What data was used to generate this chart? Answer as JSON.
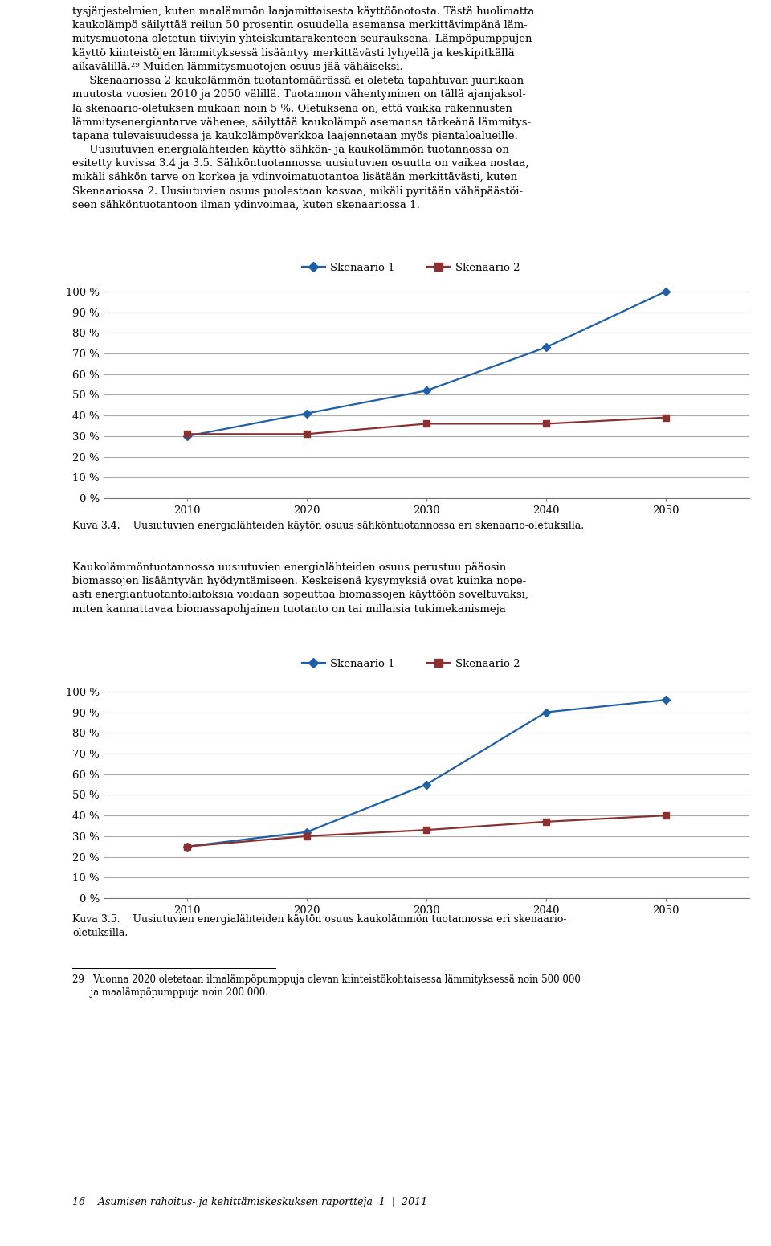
{
  "chart1": {
    "legend_labels": [
      "Skenaario 1",
      "Skenaario 2"
    ],
    "x": [
      2010,
      2020,
      2030,
      2040,
      2050
    ],
    "skenaario1": [
      0.3,
      0.41,
      0.52,
      0.73,
      1.0
    ],
    "skenaario2": [
      0.31,
      0.31,
      0.36,
      0.36,
      0.39
    ],
    "caption": "Kuva 3.4.    Uusiutuvien energialähteiden käytön osuus sähköntuotannossa eri skenaario-oletuksilla."
  },
  "chart2": {
    "legend_labels": [
      "Skenaario 1",
      "Skenaario 2"
    ],
    "x": [
      2010,
      2020,
      2030,
      2040,
      2050
    ],
    "skenaario1": [
      0.25,
      0.32,
      0.55,
      0.9,
      0.96
    ],
    "skenaario2": [
      0.25,
      0.3,
      0.33,
      0.37,
      0.4
    ],
    "caption_line1": "Kuva 3.5.    Uusiutuvien energialähteiden käytön osuus kaukolämmön tuotannossa eri skenaario-",
    "caption_line2": "oletuksilla."
  },
  "top_text_lines": [
    "tysjärjestelmien, kuten maalämmön laajamittaisesta käyttöönotosta. Tästä huolimatta",
    "kaukolämpö säilyttää reilun 50 prosentin osuudella asemansa merkittävimpänä läm-",
    "mitysmuotona oletetun tiiviyin yhteiskuntarakenteen seurauksena. Lämpöpumppujen",
    "käyttö kiinteistöjen lämmityksessä lisääntyy merkittävästi lyhyellä ja keskipitkällä",
    "aikavälillä.²⁹ Muiden lämmitysmuotojen osuus jää vähäiseksi.",
    "     Skenaariossa 2 kaukolämmön tuotantomäärässä ei oleteta tapahtuvan juurikaan",
    "muutosta vuosien 2010 ja 2050 välillä. Tuotannon vähentyminen on tällä ajanjaksol-",
    "la skenaario-oletuksen mukaan noin 5 %. Oletuksena on, että vaikka rakennusten",
    "lämmitysenergiantarve vähenee, säilyttää kaukolämpö asemansa tärkeänä lämmitys-",
    "tapana tulevaisuudessa ja kaukolämpöverkkoa laajennetaan myös pientaloalueille.",
    "     Uusiutuvien energialähteiden käyttö sähkön- ja kaukolämmön tuotannossa on",
    "esitetty kuvissa 3.4 ja 3.5. Sähköntuotannossa uusiutuvien osuutta on vaikea nostaa,",
    "mikäli sähkön tarve on korkea ja ydinvoimatuotantoa lisätään merkittävästi, kuten",
    "Skenaariossa 2. Uusiutuvien osuus puolestaan kasvaa, mikäli pyritään vähäpäästöi-",
    "seen sähköntuotantoon ilman ydinvoimaa, kuten skenaariossa 1."
  ],
  "middle_text_lines": [
    "Kaukolämmöntuotannossa uusiutuvien energialähteiden osuus perustuu pääosin",
    "biomassojen lisääntyvän hyödyntämiseen. Keskeisenä kysymyksiä ovat kuinka nope-",
    "asti energiantuotantolaitoksia voidaan sopeuttaa biomassojen käyttöön soveltuvaksi,",
    "miten kannattavaa biomassapohjainen tuotanto on tai millaisia tukimekanismeja"
  ],
  "footnote_line1": "29   Vuonna 2020 oletetaan ilmalämpöpumppuja olevan kiinteistökohtaisessa lämmityksessä noin 500 000",
  "footnote_line2": "      ja maalämpöpumppuja noin 200 000.",
  "page_label": "16    Asumisen rahoitus- ja kehittämiskeskuksen raportteja  1  |  2011",
  "color_s1": "#1F5FA6",
  "color_s2": "#8B3030",
  "line_color_grid": "#AAAAAA",
  "background": "#FFFFFF",
  "ylim": [
    0.0,
    1.05
  ],
  "yticks": [
    0.0,
    0.1,
    0.2,
    0.3,
    0.4,
    0.5,
    0.6,
    0.7,
    0.8,
    0.9,
    1.0
  ],
  "ytick_labels": [
    "0 %",
    "10 %",
    "20 %",
    "30 %",
    "40 %",
    "50 %",
    "60 %",
    "70 %",
    "80 %",
    "90 %",
    "100 %"
  ]
}
